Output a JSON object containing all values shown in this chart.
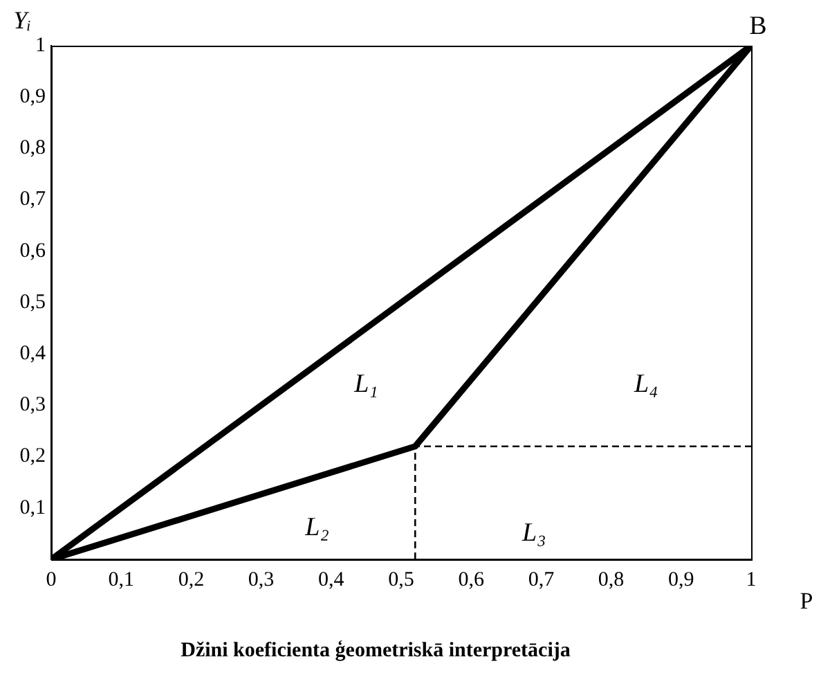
{
  "chart_data": {
    "type": "line",
    "title": "Džini koeficienta ģeometriskā interpretācija",
    "xlabel": "P",
    "ylabel": "Yᵢ",
    "series": [
      {
        "color": "#000000",
        "x": [
          0,
          1
        ],
        "values": [
          0,
          1
        ]
      },
      {
        "color": "#000000",
        "x": [
          0,
          0.52,
          1
        ],
        "values": [
          0,
          0.22,
          1
        ]
      },
      {
        "color": "#000000",
        "x": [
          0.52,
          0.52,
          1
        ],
        "values": [
          0,
          0.22,
          0.22
        ],
        "line_style": "dashed"
      }
    ],
    "xlim": [
      0,
      1
    ],
    "ylim": [
      0,
      1
    ],
    "xticks": [
      0,
      {
        "value": 0.1,
        "label": "0,1"
      },
      {
        "value": 0.2,
        "label": "0,2"
      },
      {
        "value": 0.3,
        "label": "0,3"
      },
      {
        "value": 0.4,
        "label": "0,4"
      },
      {
        "value": 0.5,
        "label": "0,5"
      },
      {
        "value": 0.6,
        "label": "0,6"
      },
      {
        "value": 0.7,
        "label": "0,7"
      },
      {
        "value": 0.8,
        "label": "0,8"
      },
      {
        "value": 0.9,
        "label": "0,9"
      },
      1
    ],
    "yticks": [
      {
        "value": 0.1,
        "label": "0,1"
      },
      {
        "value": 0.2,
        "label": "0,2"
      },
      {
        "value": 0.3,
        "label": "0,3"
      },
      {
        "value": 0.4,
        "label": "0,4"
      },
      {
        "value": 0.5,
        "label": "0,5"
      },
      {
        "value": 0.6,
        "label": "0,6"
      },
      {
        "value": 0.7,
        "label": "0,7"
      },
      {
        "value": 0.8,
        "label": "0,8"
      },
      {
        "value": 0.9,
        "label": "0,9"
      },
      1
    ],
    "annotations": [
      {
        "text": "B",
        "x": 1,
        "y": 1
      },
      "L₁",
      "L₂",
      "L₃",
      "L₄"
    ]
  }
}
